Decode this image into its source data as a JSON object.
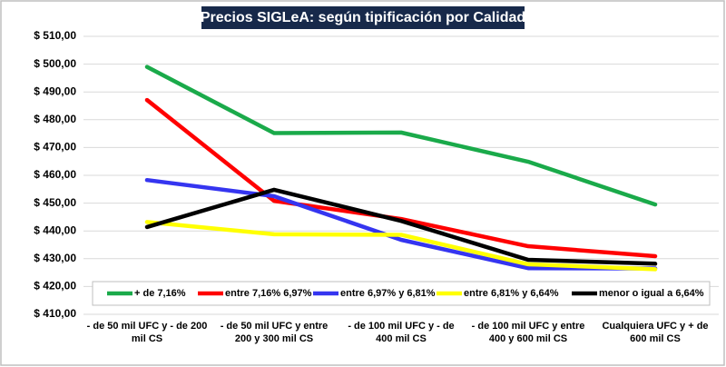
{
  "chart_data": {
    "type": "line",
    "title": "Precios SIGLeA: según tipificación por Calidad",
    "categories": [
      "- de 50 mil UFC y - de 200 mil CS",
      "- de 50 mil UFC y entre  200 y 300 mil CS",
      "- de 100 mil UFC y - de 400 mil CS",
      "- de 100 mil UFC y entre  400 y 600 mil CS",
      "Cualquiera UFC y + de 600 mil CS"
    ],
    "series": [
      {
        "name": "+ de 7,16%",
        "color": "#1aaa4a",
        "values": [
          499,
          475.2,
          475.4,
          464.9,
          449.5
        ]
      },
      {
        "name": "entre 7,16% 6,97%",
        "color": "#ff0000",
        "values": [
          487.1,
          450.8,
          444.3,
          434.5,
          430.9
        ]
      },
      {
        "name": "entre 6,97% y 6,81%",
        "color": "#3535f0",
        "values": [
          458.3,
          452.5,
          436.8,
          426.6,
          426.5
        ]
      },
      {
        "name": "entre 6,81% y 6,64%",
        "color": "#ffff00",
        "values": [
          443.2,
          438.8,
          438.6,
          428,
          426.2
        ]
      },
      {
        "name": "menor o igual a 6,64%",
        "color": "#000000",
        "values": [
          441.4,
          454.8,
          443.6,
          429.6,
          428.2
        ]
      }
    ],
    "ylim": [
      410,
      510
    ],
    "yticks": [
      {
        "value": 410,
        "label": "$ 410,00"
      },
      {
        "value": 420,
        "label": "$ 420,00"
      },
      {
        "value": 430,
        "label": "$ 430,00"
      },
      {
        "value": 440,
        "label": "$ 440,00"
      },
      {
        "value": 450,
        "label": "$ 450,00"
      },
      {
        "value": 460,
        "label": "$ 460,00"
      },
      {
        "value": 470,
        "label": "$ 470,00"
      },
      {
        "value": 480,
        "label": "$ 480,00"
      },
      {
        "value": 490,
        "label": "$ 490,00"
      },
      {
        "value": 500,
        "label": "$ 500,00"
      },
      {
        "value": 510,
        "label": "$ 510,00"
      }
    ],
    "grid": true,
    "legend": "bottom"
  }
}
